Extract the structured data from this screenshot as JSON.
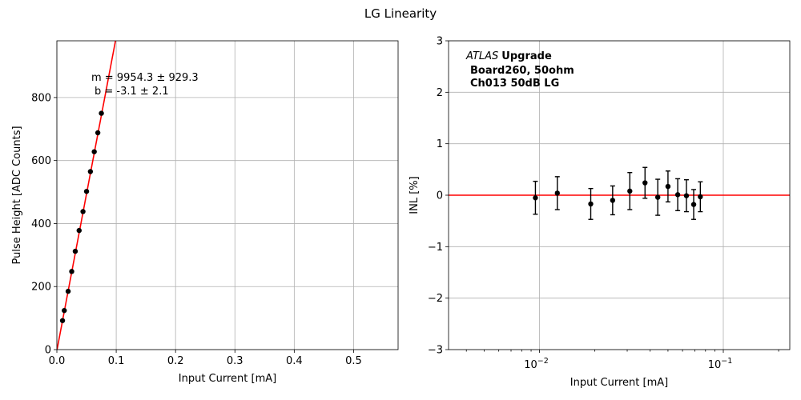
{
  "figure_title": "LG Linearity",
  "chart_data": [
    {
      "type": "scatter",
      "title": "",
      "xlabel": "Input Current [mA]",
      "ylabel": "Pulse Height [ADC Counts]",
      "xlim": [
        0,
        0.575
      ],
      "ylim": [
        0,
        980
      ],
      "xticks": [
        0.0,
        0.1,
        0.2,
        0.3,
        0.4,
        0.5
      ],
      "xtick_labels": [
        "0.0",
        "0.1",
        "0.2",
        "0.3",
        "0.4",
        "0.5"
      ],
      "yticks": [
        0,
        200,
        400,
        600,
        800
      ],
      "ytick_labels": [
        "0",
        "200",
        "400",
        "600",
        "800"
      ],
      "grid": true,
      "points": {
        "x": [
          0.0095,
          0.0125,
          0.019,
          0.025,
          0.031,
          0.0375,
          0.044,
          0.05,
          0.0565,
          0.063,
          0.069,
          0.075
        ],
        "y": [
          92,
          124,
          185,
          248,
          312,
          378,
          438,
          502,
          565,
          628,
          688,
          750
        ]
      },
      "fit_line": {
        "slope": 9954.3,
        "intercept": -3.1,
        "color": "#ff0000"
      },
      "annotation": {
        "line1": "m = 9954.3 ± 929.3",
        "line2": "b = -3.1 ± 2.1"
      }
    },
    {
      "type": "scatter",
      "title": "",
      "xscale": "log",
      "xlabel": "Input Current [mA]",
      "ylabel": "INL [%]",
      "xlim": [
        0.0032,
        0.23
      ],
      "ylim": [
        -3,
        3
      ],
      "xtick_majors": [
        0.01,
        0.1
      ],
      "xtick_labels": [
        {
          "base": "10",
          "exp": "−2"
        },
        {
          "base": "10",
          "exp": "−1"
        }
      ],
      "yticks": [
        -3,
        -2,
        -1,
        0,
        1,
        2,
        3
      ],
      "ytick_labels": [
        "−3",
        "−2",
        "−1",
        "0",
        "1",
        "2",
        "3"
      ],
      "grid": true,
      "points": {
        "x": [
          0.0095,
          0.0125,
          0.019,
          0.025,
          0.031,
          0.0375,
          0.044,
          0.05,
          0.0565,
          0.063,
          0.069,
          0.075
        ],
        "y": [
          -0.05,
          0.04,
          -0.17,
          -0.1,
          0.08,
          0.24,
          -0.04,
          0.17,
          0.01,
          -0.01,
          -0.18,
          -0.03
        ],
        "yerr": [
          0.32,
          0.32,
          0.3,
          0.28,
          0.36,
          0.3,
          0.35,
          0.3,
          0.31,
          0.31,
          0.29,
          0.29
        ]
      },
      "reference_line": {
        "y": 0,
        "color": "#ff0000"
      },
      "annotation": {
        "experiment": "ATLAS",
        "label": "Upgrade",
        "line2": "Board260, 50ohm",
        "line3": "Ch013 50dB LG"
      }
    }
  ]
}
